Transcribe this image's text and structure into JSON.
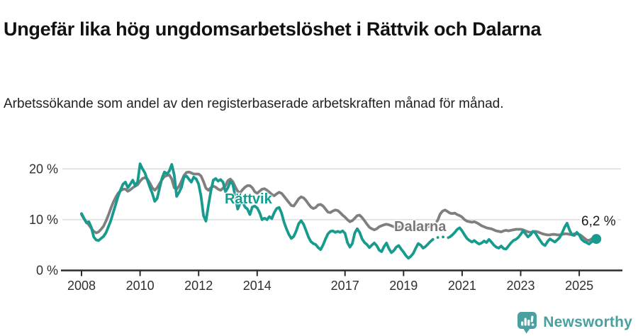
{
  "header": {
    "title": "Ungefär lika hög ungdomsarbetslöshet i Rättvik och Dalarna",
    "subtitle": "Arbetssökande som andel av den registerbaserade arbetskraften månad för månad."
  },
  "chart_data": {
    "type": "line",
    "title": "Ungefär lika hög ungdomsarbetslöshet i Rättvik och Dalarna",
    "subtitle": "Arbetssökande som andel av den registerbaserade arbetskraften månad för månad.",
    "unit": "%",
    "x_start": "2008-01",
    "x_end": "2025-08",
    "x_step_months": 1,
    "x_tick_years": [
      2008,
      2010,
      2012,
      2014,
      2017,
      2019,
      2021,
      2023,
      2025
    ],
    "y_ticks": [
      {
        "value": 0,
        "label": "0 %"
      },
      {
        "value": 10,
        "label": "10 %"
      },
      {
        "value": 20,
        "label": "20 %"
      }
    ],
    "y_gridlines": [
      10,
      20
    ],
    "ylim": [
      0,
      22
    ],
    "grid": true,
    "legend": "inline-labels",
    "annotation": {
      "text": "6,2 %",
      "series": "Rättvik",
      "at": "2025-08"
    },
    "dashed_segments": [
      {
        "series": "Dalarna",
        "from_index": 140,
        "to_index": 146
      },
      {
        "series": "Rättvik",
        "from_index": 144,
        "to_index": 151
      }
    ],
    "series": [
      {
        "name": "Dalarna",
        "color": "#7f7f7f",
        "end_dot": false,
        "values": [
          11.0,
          10.2,
          9.5,
          9.0,
          8.3,
          7.7,
          7.4,
          7.6,
          8.1,
          8.7,
          9.7,
          10.9,
          12.2,
          13.4,
          14.4,
          15.2,
          15.7,
          16.0,
          16.0,
          15.6,
          15.9,
          16.3,
          16.6,
          16.9,
          17.6,
          18.1,
          18.3,
          18.0,
          17.2,
          16.3,
          15.8,
          16.3,
          17.1,
          17.9,
          18.5,
          18.7,
          18.8,
          18.0,
          16.3,
          16.0,
          16.6,
          17.6,
          18.7,
          19.3,
          19.4,
          19.2,
          19.0,
          19.0,
          19.0,
          18.6,
          17.5,
          16.2,
          15.8,
          16.3,
          16.6,
          16.4,
          16.0,
          15.8,
          16.2,
          16.7,
          17.7,
          18.0,
          17.5,
          16.5,
          15.6,
          15.3,
          15.9,
          16.4,
          16.7,
          16.7,
          16.3,
          15.5,
          15.2,
          15.6,
          16.0,
          16.1,
          15.8,
          15.4,
          15.0,
          14.7,
          15.1,
          15.4,
          15.2,
          14.6,
          14.0,
          13.4,
          12.8,
          12.7,
          13.4,
          14.1,
          14.5,
          14.3,
          13.8,
          13.1,
          12.5,
          12.2,
          12.4,
          12.9,
          13.0,
          12.7,
          12.1,
          11.5,
          11.4,
          11.7,
          11.9,
          11.8,
          11.4,
          10.9,
          10.5,
          10.0,
          9.6,
          9.8,
          10.3,
          10.8,
          10.9,
          10.4,
          9.8,
          9.1,
          8.5,
          8.2,
          8.0,
          8.2,
          8.6,
          8.8,
          9.0,
          9.1,
          9.0,
          8.8,
          8.6,
          8.5,
          8.5,
          8.6,
          8.6,
          8.5,
          8.4,
          8.4,
          8.5,
          8.7,
          8.9,
          8.8,
          8.7,
          8.6,
          8.6,
          8.7,
          8.8,
          9.1,
          9.9,
          11.1,
          11.7,
          11.9,
          11.6,
          11.3,
          11.2,
          11.3,
          11.0,
          10.8,
          10.5,
          10.0,
          9.7,
          9.6,
          9.5,
          9.6,
          9.4,
          9.1,
          8.8,
          8.6,
          8.4,
          8.3,
          8.2,
          8.0,
          7.8,
          7.7,
          7.6,
          7.8,
          7.9,
          7.8,
          7.9,
          8.0,
          8.1,
          8.1,
          8.1,
          8.0,
          7.8,
          7.6,
          7.5,
          7.6,
          7.7,
          7.6,
          7.4,
          7.2,
          7.1,
          7.0,
          7.0,
          7.1,
          7.1,
          7.0,
          7.0,
          7.1,
          7.2,
          7.2,
          7.1,
          7.1,
          7.2,
          7.2,
          7.1,
          6.8,
          6.4,
          6.0,
          5.9,
          6.2,
          6.4,
          6.4
        ]
      },
      {
        "name": "Rättvik",
        "color": "#169b8e",
        "end_dot": true,
        "values": [
          11.2,
          10.3,
          9.4,
          9.6,
          8.5,
          6.6,
          6.0,
          5.9,
          6.3,
          6.7,
          7.4,
          8.6,
          9.8,
          11.4,
          13.0,
          14.6,
          15.9,
          17.0,
          17.4,
          16.3,
          17.0,
          17.8,
          16.7,
          17.5,
          21.0,
          20.0,
          19.2,
          17.8,
          16.4,
          15.2,
          13.6,
          14.2,
          16.2,
          18.2,
          19.4,
          19.0,
          19.6,
          20.9,
          18.8,
          14.6,
          15.4,
          16.4,
          18.4,
          18.6,
          18.0,
          17.4,
          18.4,
          18.0,
          17.0,
          14.6,
          10.8,
          9.7,
          12.8,
          15.6,
          17.8,
          18.1,
          17.6,
          17.9,
          17.4,
          15.5,
          16.3,
          17.5,
          17.0,
          14.6,
          12.1,
          13.2,
          13.6,
          12.5,
          12.1,
          11.0,
          12.5,
          12.7,
          12.3,
          11.4,
          10.0,
          10.3,
          10.0,
          10.6,
          10.2,
          11.4,
          12.2,
          12.4,
          11.3,
          9.5,
          8.2,
          7.1,
          6.3,
          6.7,
          7.8,
          9.2,
          9.8,
          9.1,
          7.9,
          6.6,
          5.7,
          5.3,
          5.1,
          4.5,
          4.1,
          5.0,
          6.2,
          7.2,
          7.7,
          7.8,
          7.5,
          7.7,
          7.5,
          7.8,
          7.3,
          5.5,
          4.6,
          5.3,
          7.4,
          8.2,
          7.5,
          6.2,
          5.5,
          5.1,
          4.5,
          5.0,
          5.4,
          4.9,
          4.0,
          3.7,
          4.7,
          5.4,
          4.3,
          3.5,
          3.9,
          4.6,
          4.9,
          4.2,
          3.6,
          2.9,
          2.4,
          2.8,
          3.4,
          4.4,
          5.3,
          5.0,
          4.4,
          4.7,
          5.2,
          5.7,
          6.1,
          6.4,
          6.5,
          6.5,
          6.6,
          6.5,
          6.4,
          6.6,
          7.0,
          7.5,
          8.1,
          8.4,
          7.8,
          7.0,
          6.3,
          5.9,
          5.6,
          5.9,
          5.5,
          5.2,
          5.4,
          5.8,
          5.5,
          6.1,
          5.6,
          5.0,
          4.6,
          4.4,
          4.8,
          4.3,
          4.2,
          4.8,
          5.4,
          5.9,
          6.1,
          6.5,
          7.1,
          7.8,
          7.2,
          6.6,
          7.0,
          7.7,
          7.4,
          6.6,
          5.9,
          5.2,
          4.9,
          5.7,
          6.2,
          5.9,
          5.6,
          6.0,
          6.5,
          7.4,
          8.5,
          9.3,
          8.0,
          7.0,
          6.9,
          7.5,
          7.0,
          6.1,
          5.7,
          5.5,
          5.2,
          5.6,
          6.0,
          6.2
        ]
      }
    ],
    "colors": {
      "axis": "#2b2b2b",
      "gridline": "#dcdcdc",
      "tick_text": "#303030"
    }
  },
  "footer": {
    "brand": "Newsworthy",
    "brand_color": "#4a9fa0"
  }
}
